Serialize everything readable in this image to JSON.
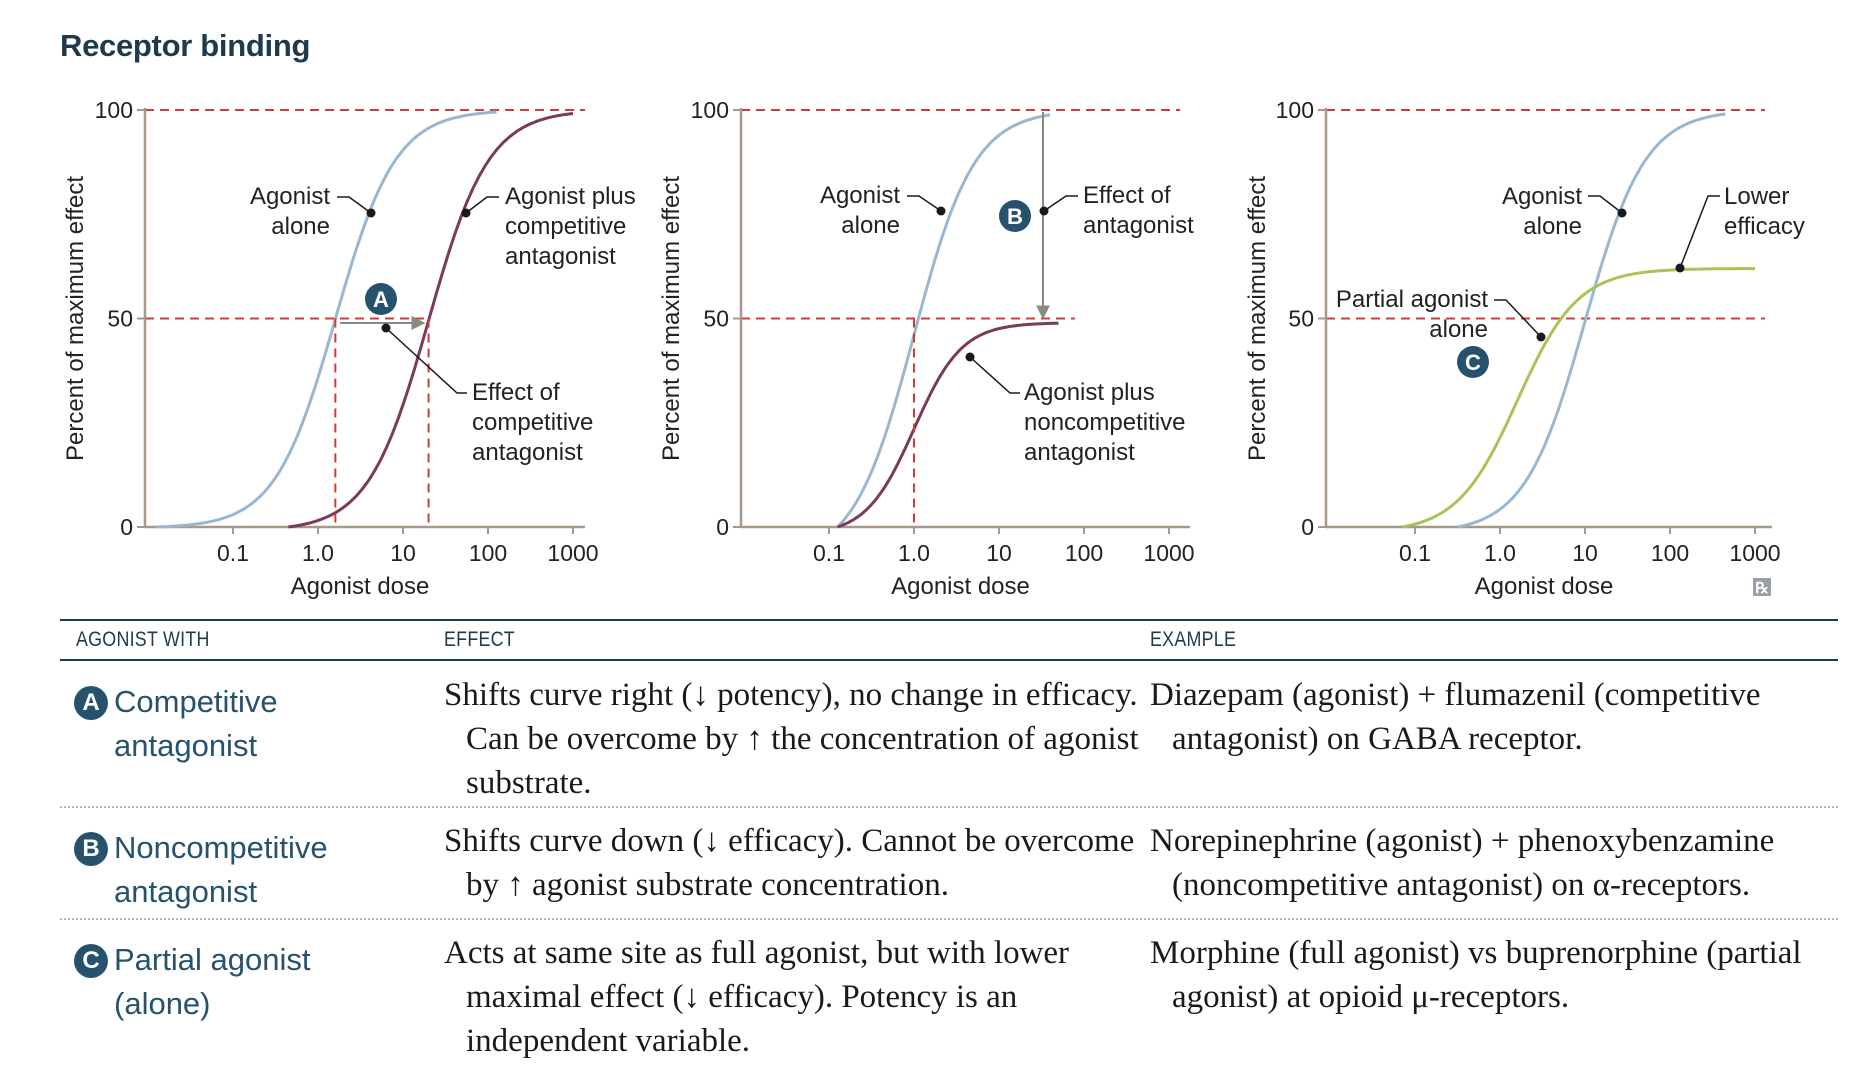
{
  "title": "Receptor binding",
  "chart_data": [
    {
      "type": "line",
      "panel": "A",
      "xscale": "log",
      "x_ticks": [
        "0.1",
        "1.0",
        "10",
        "100",
        "1000"
      ],
      "y_ticks": [
        "0",
        "50",
        "100"
      ],
      "xlabel": "Agonist dose",
      "ylabel": "Percent of maximum effect",
      "ylim": [
        0,
        100
      ],
      "series": [
        {
          "name": "Agonist alone",
          "color": "#9ab7d1",
          "emax": 100,
          "ec50": 1.6,
          "x": [
            0.03,
            0.1,
            0.3,
            1.0,
            3.0,
            10,
            30,
            100
          ],
          "y": [
            0,
            5,
            20,
            42,
            68,
            92,
            100,
            100
          ]
        },
        {
          "name": "Agonist plus competitive antagonist",
          "color": "#7b3a5a",
          "emax": 100,
          "ec50": 20,
          "x": [
            0.7,
            1.0,
            3.0,
            10,
            30,
            100,
            1000
          ],
          "y": [
            0,
            2,
            15,
            38,
            62,
            90,
            100
          ]
        }
      ],
      "annotations": [
        {
          "badge": "A",
          "text": "Effect of competitive antagonist"
        },
        {
          "text": "Agonist alone"
        },
        {
          "text": "Agonist plus competitive antagonist"
        }
      ]
    },
    {
      "type": "line",
      "panel": "B",
      "xscale": "log",
      "x_ticks": [
        "0.1",
        "1.0",
        "10",
        "100",
        "1000"
      ],
      "y_ticks": [
        "0",
        "50",
        "100"
      ],
      "xlabel": "Agonist dose",
      "ylabel": "Percent of maximum effect",
      "ylim": [
        0,
        100
      ],
      "series": [
        {
          "name": "Agonist alone",
          "color": "#9ab7d1",
          "emax": 100,
          "ec50": 1.0,
          "x": [
            0.2,
            0.3,
            1.0,
            3.0,
            10,
            40
          ],
          "y": [
            0,
            5,
            50,
            80,
            95,
            100
          ]
        },
        {
          "name": "Agonist plus noncompetitive antagonist",
          "color": "#7b3a5a",
          "emax": 49,
          "ec50": 1.0,
          "x": [
            0.2,
            0.3,
            1.0,
            3.0,
            10,
            50
          ],
          "y": [
            0,
            3,
            22,
            38,
            47,
            49
          ]
        }
      ],
      "annotations": [
        {
          "badge": "B",
          "text": "Effect of antagonist"
        },
        {
          "text": "Agonist alone"
        },
        {
          "text": "Agonist plus noncompetitive antagonist"
        }
      ]
    },
    {
      "type": "line",
      "panel": "C",
      "xscale": "log",
      "x_ticks": [
        "0.1",
        "1.0",
        "10",
        "100",
        "1000"
      ],
      "y_ticks": [
        "0",
        "50",
        "100"
      ],
      "xlabel": "Agonist dose",
      "ylabel": "Percent of maximum effect",
      "ylim": [
        0,
        100
      ],
      "series": [
        {
          "name": "Agonist alone",
          "color": "#9ab7d1",
          "emax": 100,
          "ec50": 10,
          "x": [
            0.4,
            1.0,
            3.0,
            10,
            30,
            100,
            400
          ],
          "y": [
            0,
            5,
            22,
            50,
            78,
            97,
            100
          ]
        },
        {
          "name": "Partial agonist alone",
          "color": "#a8c458",
          "emax": 62,
          "ec50": 1.6,
          "x": [
            0.1,
            0.3,
            1.0,
            3.0,
            10,
            100,
            1000
          ],
          "y": [
            0,
            5,
            22,
            45,
            56,
            61,
            62
          ]
        }
      ],
      "annotations": [
        {
          "badge": "C",
          "text": "Partial agonist alone"
        },
        {
          "text": "Agonist alone"
        },
        {
          "text": "Lower efficacy"
        }
      ]
    }
  ],
  "panel_a": {
    "agonist_alone_1": "Agonist",
    "agonist_alone_2": "alone",
    "plus_1": "Agonist plus",
    "plus_2": "competitive",
    "plus_3": "antagonist",
    "effect_1": "Effect of",
    "effect_2": "competitive",
    "effect_3": "antagonist",
    "badge": "A"
  },
  "panel_b": {
    "agonist_alone_1": "Agonist",
    "agonist_alone_2": "alone",
    "effect_1": "Effect of",
    "effect_2": "antagonist",
    "plus_1": "Agonist plus",
    "plus_2": "noncompetitive",
    "plus_3": "antagonist",
    "badge": "B"
  },
  "panel_c": {
    "agonist_alone_1": "Agonist",
    "agonist_alone_2": "alone",
    "lower_1": "Lower",
    "lower_2": "efficacy",
    "partial_1": "Partial agonist",
    "partial_2": "alone",
    "badge": "C"
  },
  "table": {
    "headers": [
      "AGONIST WITH",
      "EFFECT",
      "EXAMPLE"
    ],
    "rows": [
      {
        "badge": "A",
        "label": "Competitive antagonist",
        "effect": "Shifts curve right (↓ potency), no change in efficacy. Can be overcome by ↑ the concentration of agonist substrate.",
        "example": "Diazepam (agonist) + flumazenil (competitive antagonist) on GABA receptor."
      },
      {
        "badge": "B",
        "label": "Noncompetitive antagonist",
        "effect": "Shifts curve down (↓ efficacy). Cannot be overcome by ↑ agonist substrate concentration.",
        "example": "Norepinephrine (agonist) + phenoxybenzamine (noncompetitive antagonist) on α-receptors."
      },
      {
        "badge": "C",
        "label": "Partial agonist (alone)",
        "effect": "Acts at same site as full agonist, but with lower maximal effect (↓ efficacy). Potency is an independent variable.",
        "example": "Morphine (full agonist) vs buprenorphine (partial agonist) at opioid μ-receptors."
      }
    ]
  },
  "colors": {
    "axis": "#a89888",
    "dashed": "#d23a3a",
    "arrow": "#8a8a80",
    "heading": "#1e3a4d",
    "label_blue": "#27526e"
  },
  "logo_text": "℞"
}
